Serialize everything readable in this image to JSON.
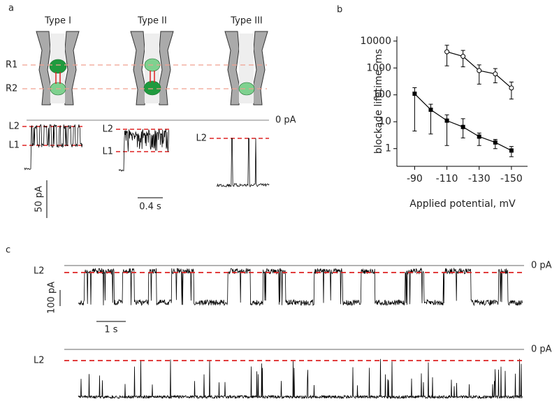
{
  "panel_labels": [
    "a",
    "b",
    "c"
  ],
  "panel_a": {
    "types": [
      "Type I",
      "Type II",
      "Type III"
    ],
    "regions": [
      "R1",
      "R2"
    ],
    "zero_label": "0 pA",
    "level_labels": [
      "L2",
      "L1",
      "L2",
      "L1",
      "L2"
    ],
    "scale_current": "50 pA",
    "scale_time": "0.4 s"
  },
  "chart_data": {
    "type": "scatter",
    "xlabel": "Applied potential, mV",
    "ylabel": "blockade lifetime, ms",
    "x": [
      -90,
      -100,
      -110,
      -120,
      -130,
      -140,
      -150
    ],
    "xlim": [
      -79,
      -160
    ],
    "xticks": [
      -90,
      -110,
      -130,
      -150
    ],
    "ylim": [
      0.22,
      15000
    ],
    "yticks": [
      1,
      10,
      100,
      1000,
      10000
    ],
    "log_y": true,
    "series": [
      {
        "marker": "circle",
        "color": "#000000",
        "values": [
          null,
          null,
          4000,
          2700,
          800,
          600,
          180
        ],
        "error_low": [
          null,
          null,
          1200,
          1100,
          250,
          280,
          70
        ],
        "error_high": [
          null,
          null,
          7000,
          4500,
          1300,
          950,
          300
        ]
      },
      {
        "marker": "square",
        "color": "#000000",
        "values": [
          110,
          28,
          11,
          6.4,
          2.8,
          1.7,
          0.85
        ],
        "error_low": [
          4.5,
          3.5,
          1.3,
          2.5,
          1.3,
          1.0,
          0.5
        ],
        "error_high": [
          185,
          45,
          18,
          13,
          3.8,
          2.2,
          1.2
        ]
      }
    ]
  },
  "panel_c": {
    "level_labels": [
      "L2",
      "L2"
    ],
    "zero_labels": [
      "0 pA",
      "0 pA"
    ],
    "scale_current": "100 pA",
    "scale_time": "1 s"
  }
}
